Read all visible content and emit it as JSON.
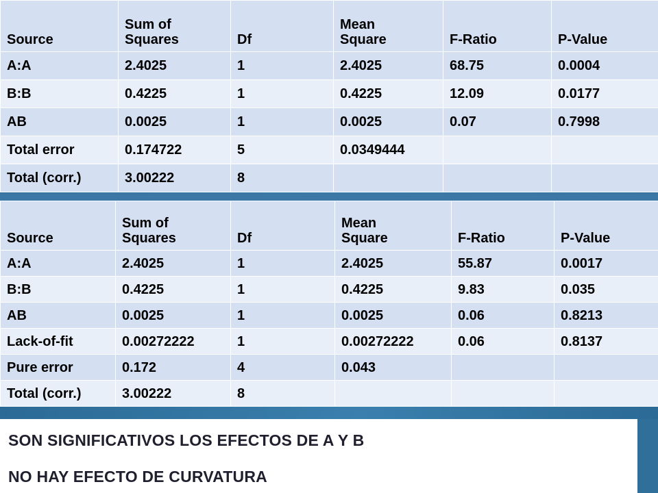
{
  "table1": {
    "headers": [
      "Source",
      "Sum of Squares",
      "Df",
      "Mean Square",
      "F-Ratio",
      "P-Value"
    ],
    "header_lines": [
      [
        "Source"
      ],
      [
        "Sum of",
        "Squares"
      ],
      [
        "Df"
      ],
      [
        "Mean",
        "Square"
      ],
      [
        "F-Ratio"
      ],
      [
        "P-Value"
      ]
    ],
    "rows": [
      [
        "A:A",
        "2.4025",
        "1",
        "2.4025",
        "68.75",
        "0.0004"
      ],
      [
        "B:B",
        "0.4225",
        "1",
        "0.4225",
        "12.09",
        "0.0177"
      ],
      [
        "AB",
        "0.0025",
        "1",
        "0.0025",
        "0.07",
        "0.7998"
      ],
      [
        "Total error",
        "0.174722",
        "5",
        "0.0349444",
        "",
        ""
      ],
      [
        "Total (corr.)",
        "3.00222",
        "8",
        "",
        "",
        ""
      ]
    ]
  },
  "table2": {
    "headers": [
      "Source",
      "Sum of Squares",
      "Df",
      "Mean Square",
      "F-Ratio",
      "P-Value"
    ],
    "header_lines": [
      [
        "Source"
      ],
      [
        "Sum of",
        "Squares"
      ],
      [
        "Df"
      ],
      [
        "Mean",
        "Square"
      ],
      [
        "F-Ratio"
      ],
      [
        "P-Value"
      ]
    ],
    "rows": [
      [
        "A:A",
        "2.4025",
        "1",
        "2.4025",
        "55.87",
        "0.0017"
      ],
      [
        "B:B",
        "0.4225",
        "1",
        "0.4225",
        "9.83",
        "0.035"
      ],
      [
        "AB",
        "0.0025",
        "1",
        "0.0025",
        "0.06",
        "0.8213"
      ],
      [
        "Lack-of-fit",
        "0.00272222",
        "1",
        "0.00272222",
        "0.06",
        "0.8137"
      ],
      [
        "Pure error",
        "0.172",
        "4",
        "0.043",
        "",
        ""
      ],
      [
        "Total (corr.)",
        "3.00222",
        "8",
        "",
        "",
        ""
      ]
    ]
  },
  "conclusions": [
    "SON SIGNIFICATIVOS LOS EFECTOS DE A Y B",
    "NO HAY EFECTO DE CURVATURA"
  ],
  "colors": {
    "cell_bg": "#d5dff2",
    "cell_bg_alt": "#e9eff8",
    "slide_bg": "#2f6f9a",
    "conclusion_text": "#1f1f2e"
  }
}
